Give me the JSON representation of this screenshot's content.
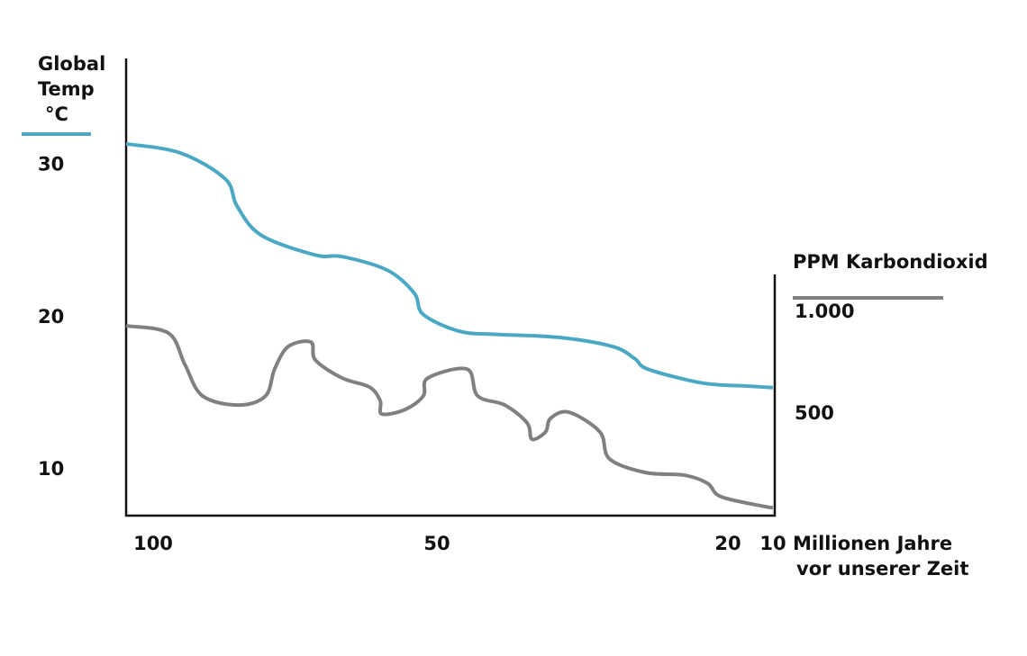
{
  "chart_data": {
    "type": "line",
    "ylabel": [
      "Global",
      "Temp",
      "°C"
    ],
    "y2label": "PPM Karbondioxid",
    "xlabel": [
      "Millionen Jahre",
      "vor unserer Zeit"
    ],
    "xlim": [
      105,
      10
    ],
    "xticks": [
      100,
      50,
      20,
      10
    ],
    "ylim": [
      7,
      37
    ],
    "yticks": [
      30,
      20,
      10
    ],
    "y2lim": [
      0,
      1200
    ],
    "y2ticks": [
      {
        "value": 1000,
        "label": "1.000"
      },
      500
    ],
    "series": [
      {
        "color": "#4aa8c4",
        "axis": "y",
        "x": [
          105,
          95.2,
          87.3,
          85.2,
          80.95,
          71.4,
          66.7,
          58.7,
          54.0,
          52.4,
          47.7,
          44.0,
          37.5,
          31.9,
          29.6,
          28.2,
          22.6,
          15.6,
          10
        ],
        "values": [
          31.4,
          30.8,
          29.1,
          27.3,
          25.4,
          24.1,
          24.0,
          23.1,
          21.6,
          20.2,
          19.1,
          18.9,
          18.7,
          18.1,
          17.3,
          16.6,
          15.7,
          15.5,
          15.4
        ]
      },
      {
        "color": "#808080",
        "axis": "y2",
        "x": [
          105,
          97.3,
          94.4,
          91.3,
          84.9,
          80.2,
          78.6,
          76.2,
          72.2,
          71.4,
          66.7,
          61.9,
          60.0,
          59.7,
          55.6,
          52.4,
          51.6,
          46.9,
          45.8,
          43.0,
          40.7,
          40.2,
          38.8,
          38.3,
          36.4,
          33.2,
          32.2,
          28.5,
          24.5,
          22.1,
          20.7,
          11.6,
          10
        ],
        "values": [
          934,
          898,
          743,
          589,
          544,
          589,
          721,
          832,
          854,
          765,
          677,
          633,
          566,
          500,
          522,
          589,
          677,
          721,
          589,
          544,
          456,
          376,
          412,
          478,
          509,
          412,
          279,
          212,
          199,
          159,
          93,
          44,
          40
        ]
      }
    ]
  }
}
